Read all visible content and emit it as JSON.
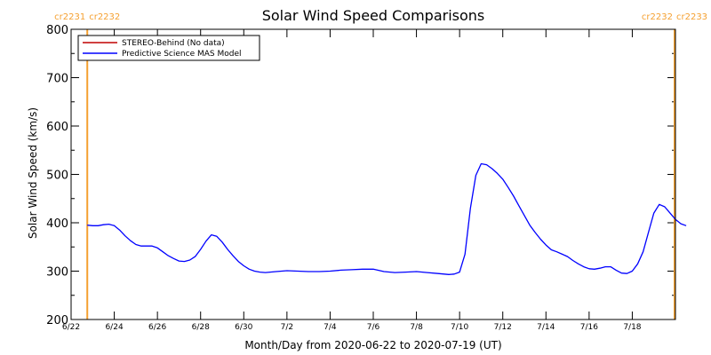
{
  "chart_data": {
    "type": "line",
    "title": "Solar Wind Speed Comparisons",
    "xlabel": "Month/Day from 2020-06-22 to 2020-07-19 (UT)",
    "ylabel": "Solar Wind Speed (km/s)",
    "ylim": [
      200,
      800
    ],
    "xlim": [
      "2020-06-22",
      "2020-07-20"
    ],
    "yticks": [
      200,
      300,
      400,
      500,
      600,
      700,
      800
    ],
    "xticks": [
      {
        "date": "2020-06-22",
        "label": "6/22"
      },
      {
        "date": "2020-06-24",
        "label": "6/24"
      },
      {
        "date": "2020-06-26",
        "label": "6/26"
      },
      {
        "date": "2020-06-28",
        "label": "6/28"
      },
      {
        "date": "2020-06-30",
        "label": "6/30"
      },
      {
        "date": "2020-07-02",
        "label": "7/2"
      },
      {
        "date": "2020-07-04",
        "label": "7/4"
      },
      {
        "date": "2020-07-06",
        "label": "7/6"
      },
      {
        "date": "2020-07-08",
        "label": "7/8"
      },
      {
        "date": "2020-07-10",
        "label": "7/10"
      },
      {
        "date": "2020-07-12",
        "label": "7/12"
      },
      {
        "date": "2020-07-14",
        "label": "7/14"
      },
      {
        "date": "2020-07-16",
        "label": "7/16"
      },
      {
        "date": "2020-07-18",
        "label": "7/18"
      }
    ],
    "legend": {
      "placement": "top-left",
      "entries": [
        {
          "name": "STEREO-Behind (No data)",
          "color": "#c00000"
        },
        {
          "name": "Predictive Science MAS Model",
          "color": "#0000ff"
        }
      ]
    },
    "carrington_markers": [
      {
        "date": "2020-06-22 18:00",
        "label_left": "cr2231",
        "label_right": "cr2232",
        "side": "left"
      },
      {
        "date": "2020-07-19 23:00",
        "label_left": "cr2232",
        "label_right": "cr2233",
        "side": "right"
      }
    ],
    "marker_color": "#f5a030",
    "series": [
      {
        "name": "Predictive Science MAS Model",
        "color": "#0000ff",
        "points": [
          [
            "2020-06-22 18:00",
            395
          ],
          [
            "2020-06-23 00:00",
            394
          ],
          [
            "2020-06-23 06:00",
            394
          ],
          [
            "2020-06-23 12:00",
            396
          ],
          [
            "2020-06-23 18:00",
            397
          ],
          [
            "2020-06-24 00:00",
            394
          ],
          [
            "2020-06-24 06:00",
            385
          ],
          [
            "2020-06-24 12:00",
            373
          ],
          [
            "2020-06-24 18:00",
            363
          ],
          [
            "2020-06-25 00:00",
            355
          ],
          [
            "2020-06-25 06:00",
            352
          ],
          [
            "2020-06-25 12:00",
            352
          ],
          [
            "2020-06-25 18:00",
            352
          ],
          [
            "2020-06-26 00:00",
            348
          ],
          [
            "2020-06-26 06:00",
            340
          ],
          [
            "2020-06-26 12:00",
            332
          ],
          [
            "2020-06-26 18:00",
            326
          ],
          [
            "2020-06-27 00:00",
            321
          ],
          [
            "2020-06-27 06:00",
            320
          ],
          [
            "2020-06-27 12:00",
            323
          ],
          [
            "2020-06-27 18:00",
            330
          ],
          [
            "2020-06-28 00:00",
            345
          ],
          [
            "2020-06-28 06:00",
            362
          ],
          [
            "2020-06-28 12:00",
            375
          ],
          [
            "2020-06-28 18:00",
            372
          ],
          [
            "2020-06-29 00:00",
            360
          ],
          [
            "2020-06-29 06:00",
            345
          ],
          [
            "2020-06-29 12:00",
            332
          ],
          [
            "2020-06-29 18:00",
            320
          ],
          [
            "2020-06-30 00:00",
            311
          ],
          [
            "2020-06-30 06:00",
            304
          ],
          [
            "2020-06-30 12:00",
            300
          ],
          [
            "2020-06-30 18:00",
            298
          ],
          [
            "2020-07-01 00:00",
            297
          ],
          [
            "2020-07-01 12:00",
            299
          ],
          [
            "2020-07-02 00:00",
            301
          ],
          [
            "2020-07-02 12:00",
            300
          ],
          [
            "2020-07-03 00:00",
            299
          ],
          [
            "2020-07-03 12:00",
            299
          ],
          [
            "2020-07-04 00:00",
            300
          ],
          [
            "2020-07-04 12:00",
            302
          ],
          [
            "2020-07-05 00:00",
            303
          ],
          [
            "2020-07-05 12:00",
            304
          ],
          [
            "2020-07-06 00:00",
            304
          ],
          [
            "2020-07-06 12:00",
            299
          ],
          [
            "2020-07-07 00:00",
            297
          ],
          [
            "2020-07-07 12:00",
            298
          ],
          [
            "2020-07-08 00:00",
            299
          ],
          [
            "2020-07-08 12:00",
            297
          ],
          [
            "2020-07-09 00:00",
            295
          ],
          [
            "2020-07-09 12:00",
            293
          ],
          [
            "2020-07-09 18:00",
            294
          ],
          [
            "2020-07-10 00:00",
            298
          ],
          [
            "2020-07-10 06:00",
            335
          ],
          [
            "2020-07-10 12:00",
            430
          ],
          [
            "2020-07-10 18:00",
            498
          ],
          [
            "2020-07-11 00:00",
            522
          ],
          [
            "2020-07-11 06:00",
            520
          ],
          [
            "2020-07-11 12:00",
            512
          ],
          [
            "2020-07-11 18:00",
            502
          ],
          [
            "2020-07-12 00:00",
            490
          ],
          [
            "2020-07-12 06:00",
            473
          ],
          [
            "2020-07-12 12:00",
            455
          ],
          [
            "2020-07-12 18:00",
            435
          ],
          [
            "2020-07-13 00:00",
            415
          ],
          [
            "2020-07-13 06:00",
            395
          ],
          [
            "2020-07-13 12:00",
            380
          ],
          [
            "2020-07-13 18:00",
            366
          ],
          [
            "2020-07-14 00:00",
            354
          ],
          [
            "2020-07-14 06:00",
            344
          ],
          [
            "2020-07-14 12:00",
            340
          ],
          [
            "2020-07-14 18:00",
            335
          ],
          [
            "2020-07-15 00:00",
            330
          ],
          [
            "2020-07-15 06:00",
            322
          ],
          [
            "2020-07-15 12:00",
            315
          ],
          [
            "2020-07-15 18:00",
            309
          ],
          [
            "2020-07-16 00:00",
            305
          ],
          [
            "2020-07-16 06:00",
            304
          ],
          [
            "2020-07-16 12:00",
            306
          ],
          [
            "2020-07-16 18:00",
            309
          ],
          [
            "2020-07-17 00:00",
            309
          ],
          [
            "2020-07-17 06:00",
            302
          ],
          [
            "2020-07-17 12:00",
            296
          ],
          [
            "2020-07-17 18:00",
            295
          ],
          [
            "2020-07-18 00:00",
            300
          ],
          [
            "2020-07-18 06:00",
            315
          ],
          [
            "2020-07-18 12:00",
            340
          ],
          [
            "2020-07-18 18:00",
            380
          ],
          [
            "2020-07-19 00:00",
            420
          ],
          [
            "2020-07-19 06:00",
            438
          ],
          [
            "2020-07-19 12:00",
            433
          ],
          [
            "2020-07-19 18:00",
            420
          ],
          [
            "2020-07-20 00:00",
            407
          ],
          [
            "2020-07-20 06:00",
            398
          ],
          [
            "2020-07-20 12:00",
            394
          ]
        ]
      }
    ]
  }
}
